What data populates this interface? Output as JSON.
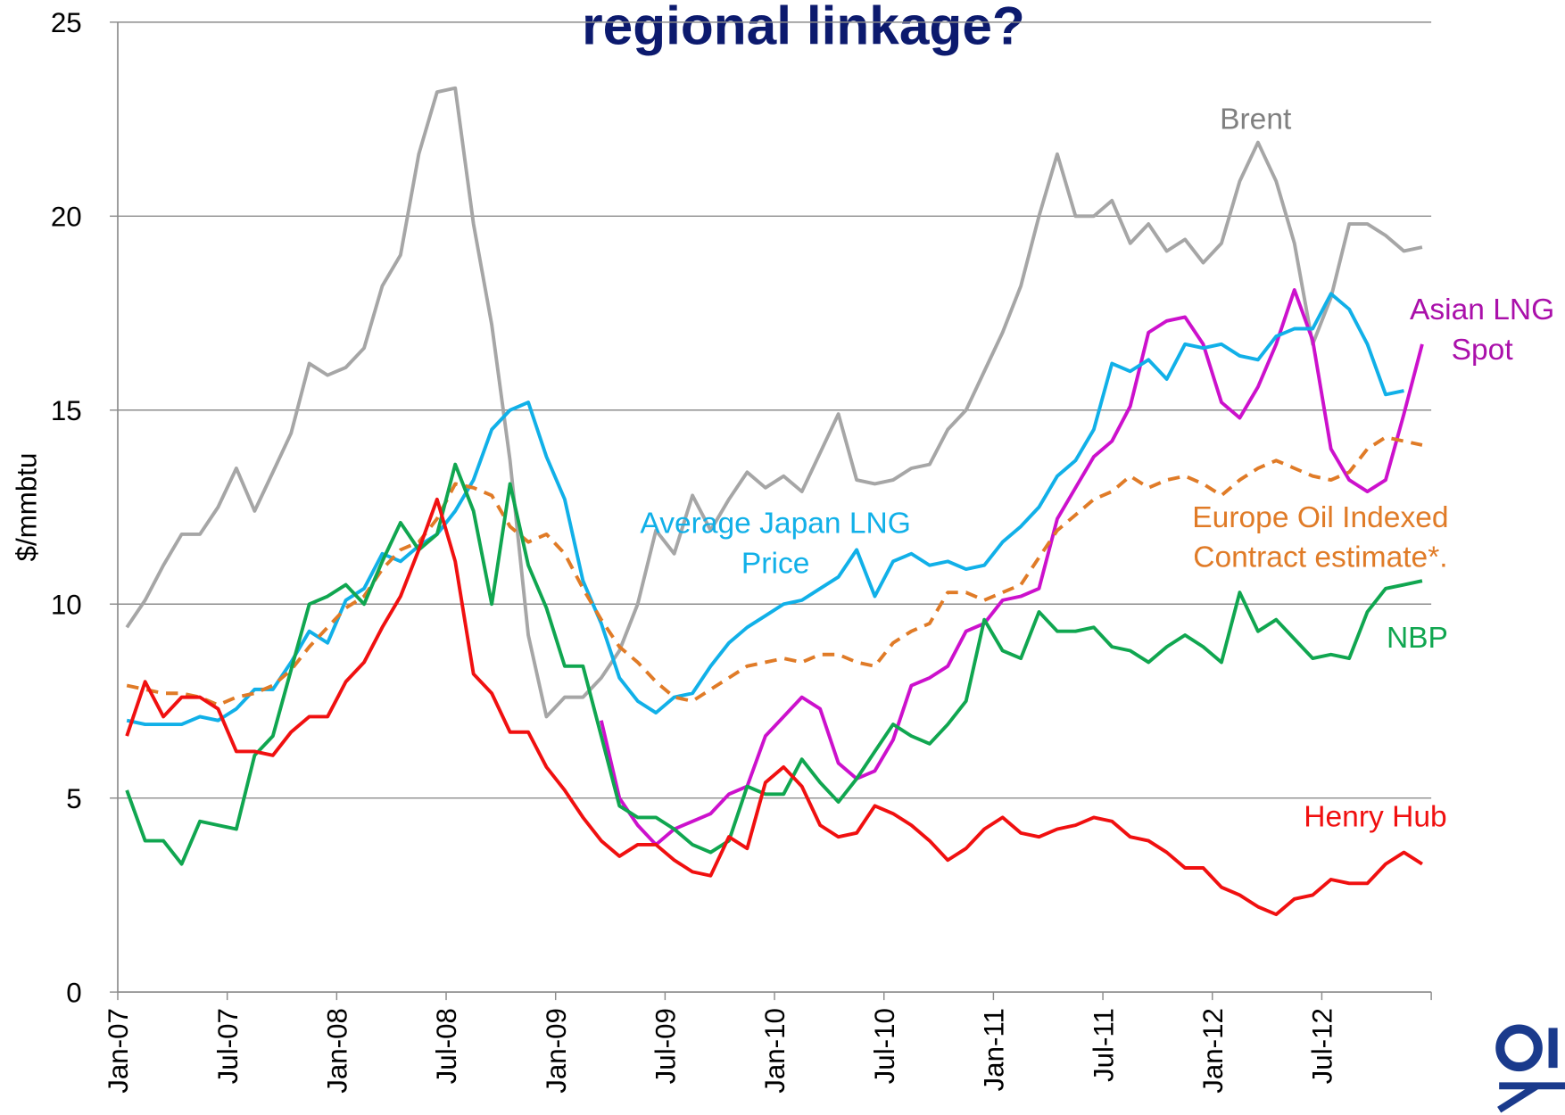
{
  "chart_data": {
    "type": "line",
    "title": "regional linkage?",
    "y_label": "$/mmbtu",
    "categories": [
      "Jan-07",
      null,
      null,
      null,
      null,
      null,
      "Jul-07",
      null,
      null,
      null,
      null,
      null,
      "Jan-08",
      null,
      null,
      null,
      null,
      null,
      "Jul-08",
      null,
      null,
      null,
      null,
      null,
      "Jan-09",
      null,
      null,
      null,
      null,
      null,
      "Jul-09",
      null,
      null,
      null,
      null,
      null,
      "Jan-10",
      null,
      null,
      null,
      null,
      null,
      "Jul-10",
      null,
      null,
      null,
      null,
      null,
      "Jan-11",
      null,
      null,
      null,
      null,
      null,
      "Jul-11",
      null,
      null,
      null,
      null,
      null,
      "Jan-12",
      null,
      null,
      null,
      null,
      null,
      "Jul-12",
      null,
      null,
      null,
      null,
      null
    ],
    "ylim": [
      0,
      25
    ],
    "yticks": [
      0,
      5,
      10,
      15,
      20,
      25
    ],
    "grid": true,
    "series": [
      {
        "name": "Brent",
        "color": "#a6a6a6",
        "label_color": "#808080",
        "values": [
          9.4,
          10.1,
          11.0,
          11.8,
          11.8,
          12.5,
          13.5,
          12.4,
          13.4,
          14.4,
          16.2,
          15.9,
          16.1,
          16.6,
          18.2,
          19.0,
          21.6,
          23.2,
          23.3,
          19.8,
          17.2,
          13.7,
          9.2,
          7.1,
          7.6,
          7.6,
          8.1,
          8.8,
          10.0,
          11.9,
          11.3,
          12.8,
          11.9,
          12.7,
          13.4,
          13.0,
          13.3,
          12.9,
          13.9,
          14.9,
          13.2,
          13.1,
          13.2,
          13.5,
          13.6,
          14.5,
          15.0,
          16.0,
          17.0,
          18.2,
          20.0,
          21.6,
          20.0,
          20.0,
          20.4,
          19.3,
          19.8,
          19.1,
          19.4,
          18.8,
          19.3,
          20.9,
          21.9,
          20.9,
          19.3,
          16.7,
          17.9,
          19.8,
          19.8,
          19.5,
          19.1,
          19.2
        ]
      },
      {
        "name": "Asian LNG Spot",
        "color": "#cc11cc",
        "label_color": "#aa10aa",
        "values": [
          null,
          null,
          null,
          null,
          null,
          null,
          null,
          null,
          null,
          null,
          null,
          null,
          null,
          null,
          null,
          null,
          null,
          null,
          null,
          null,
          null,
          null,
          null,
          null,
          null,
          null,
          7.0,
          5.0,
          4.3,
          3.8,
          4.2,
          4.4,
          4.6,
          5.1,
          5.3,
          6.6,
          7.1,
          7.6,
          7.3,
          5.9,
          5.5,
          5.7,
          6.5,
          7.9,
          8.1,
          8.4,
          9.3,
          9.5,
          10.1,
          10.2,
          10.4,
          12.2,
          13.0,
          13.8,
          14.2,
          15.1,
          17.0,
          17.3,
          17.4,
          16.7,
          15.2,
          14.8,
          15.6,
          16.7,
          18.1,
          16.8,
          14.0,
          13.2,
          12.9,
          13.2,
          14.9,
          16.7
        ]
      },
      {
        "name": "Average Japan LNG Price",
        "color": "#11b0e8",
        "label_color": "#11b0e8",
        "values": [
          7.0,
          6.9,
          6.9,
          6.9,
          7.1,
          7.0,
          7.3,
          7.8,
          7.8,
          8.5,
          9.3,
          9.0,
          10.1,
          10.4,
          11.3,
          11.1,
          11.5,
          11.8,
          12.4,
          13.2,
          14.5,
          15.0,
          15.2,
          13.8,
          12.7,
          10.6,
          9.5,
          8.1,
          7.5,
          7.2,
          7.6,
          7.7,
          8.4,
          9.0,
          9.4,
          9.7,
          10.0,
          10.1,
          10.4,
          10.7,
          11.4,
          10.2,
          11.1,
          11.3,
          11.0,
          11.1,
          10.9,
          11.0,
          11.6,
          12.0,
          12.5,
          13.3,
          13.7,
          14.5,
          16.2,
          16.0,
          16.3,
          15.8,
          16.7,
          16.6,
          16.7,
          16.4,
          16.3,
          16.9,
          17.1,
          17.1,
          18.0,
          17.6,
          16.7,
          15.4,
          15.5,
          null
        ]
      },
      {
        "name": "Europe Oil Indexed Contract estimate*.",
        "color": "#e07b27",
        "label_color": "#e07b27",
        "dashed": true,
        "values": [
          7.9,
          7.8,
          7.7,
          7.7,
          7.6,
          7.4,
          7.6,
          7.7,
          7.9,
          8.3,
          8.9,
          9.4,
          9.9,
          10.2,
          10.9,
          11.4,
          11.6,
          12.2,
          13.1,
          13.0,
          12.8,
          12.0,
          11.6,
          11.8,
          11.3,
          10.4,
          9.6,
          8.9,
          8.5,
          8.0,
          7.6,
          7.5,
          7.8,
          8.1,
          8.4,
          8.5,
          8.6,
          8.5,
          8.7,
          8.7,
          8.5,
          8.4,
          9.0,
          9.3,
          9.5,
          10.3,
          10.3,
          10.1,
          10.3,
          10.5,
          11.2,
          11.9,
          12.3,
          12.7,
          12.9,
          13.3,
          13.0,
          13.2,
          13.3,
          13.1,
          12.8,
          13.2,
          13.5,
          13.7,
          13.5,
          13.3,
          13.2,
          13.4,
          14.0,
          14.3,
          14.2,
          14.1
        ]
      },
      {
        "name": "NBP",
        "color": "#10a650",
        "label_color": "#10a650",
        "values": [
          5.2,
          3.9,
          3.9,
          3.3,
          4.4,
          4.3,
          4.2,
          6.1,
          6.6,
          8.3,
          10.0,
          10.2,
          10.5,
          10.0,
          11.1,
          12.1,
          11.4,
          11.8,
          13.6,
          12.4,
          10.0,
          13.1,
          11.0,
          9.9,
          8.4,
          8.4,
          6.6,
          4.8,
          4.5,
          4.5,
          4.2,
          3.8,
          3.6,
          3.9,
          5.3,
          5.1,
          5.1,
          6.0,
          5.4,
          4.9,
          5.5,
          6.2,
          6.9,
          6.6,
          6.4,
          6.9,
          7.5,
          9.6,
          8.8,
          8.6,
          9.8,
          9.3,
          9.3,
          9.4,
          8.9,
          8.8,
          8.5,
          8.9,
          9.2,
          8.9,
          8.5,
          10.3,
          9.3,
          9.6,
          9.1,
          8.6,
          8.7,
          8.6,
          9.8,
          10.4,
          10.5,
          10.6
        ]
      },
      {
        "name": "Henry Hub",
        "color": "#f01010",
        "label_color": "#f01010",
        "values": [
          6.6,
          8.0,
          7.1,
          7.6,
          7.6,
          7.3,
          6.2,
          6.2,
          6.1,
          6.7,
          7.1,
          7.1,
          8.0,
          8.5,
          9.4,
          10.2,
          11.4,
          12.7,
          11.1,
          8.2,
          7.7,
          6.7,
          6.7,
          5.8,
          5.2,
          4.5,
          3.9,
          3.5,
          3.8,
          3.8,
          3.4,
          3.1,
          3.0,
          4.0,
          3.7,
          5.4,
          5.8,
          5.3,
          4.3,
          4.0,
          4.1,
          4.8,
          4.6,
          4.3,
          3.9,
          3.4,
          3.7,
          4.2,
          4.5,
          4.1,
          4.0,
          4.2,
          4.3,
          4.5,
          4.4,
          4.0,
          3.9,
          3.6,
          3.2,
          3.2,
          2.7,
          2.5,
          2.2,
          2.0,
          2.4,
          2.5,
          2.9,
          2.8,
          2.8,
          3.3,
          3.6,
          3.3
        ]
      }
    ]
  }
}
